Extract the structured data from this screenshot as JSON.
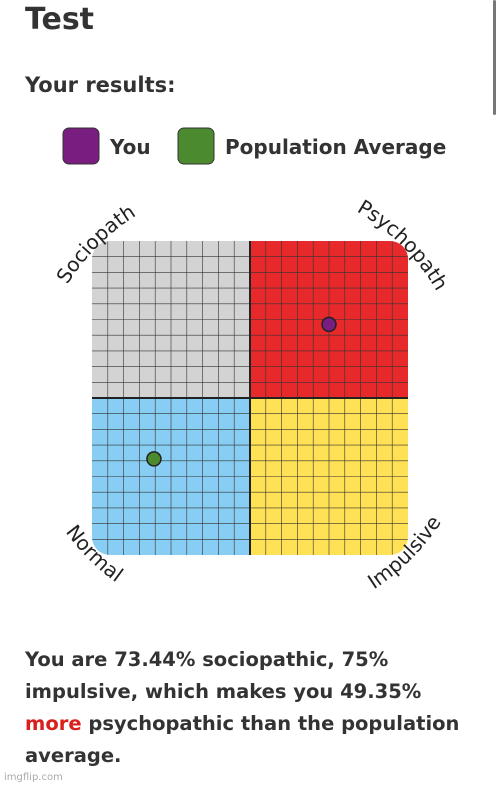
{
  "header": {
    "title": "Test",
    "subtitle": "Your results:"
  },
  "chart_data": {
    "type": "scatter",
    "series": [
      {
        "name": "You",
        "color": "#7a1d80",
        "x": [
          75
        ],
        "values": [
          73.44
        ]
      },
      {
        "name": "Population Average",
        "color": "#4b8a2e",
        "x": [
          19.6
        ],
        "values": [
          30.6
        ]
      }
    ],
    "xlim": [
      0,
      100
    ],
    "ylim": [
      0,
      100
    ],
    "grid": true,
    "quadrants": [
      "Sociopath",
      "Psychopath",
      "Normal",
      "Impulsive"
    ],
    "quadrant_colors": [
      "#d3d3d3",
      "#e8292b",
      "#88cdf3",
      "#ffe155"
    ]
  },
  "result": {
    "before": "You are 73.44% sociopathic, 75% impulsive, which makes you 49.35%",
    "highlight": "more",
    "after": "psychopathic than the population average."
  },
  "footer": {
    "watermark": "imgflip.com"
  }
}
